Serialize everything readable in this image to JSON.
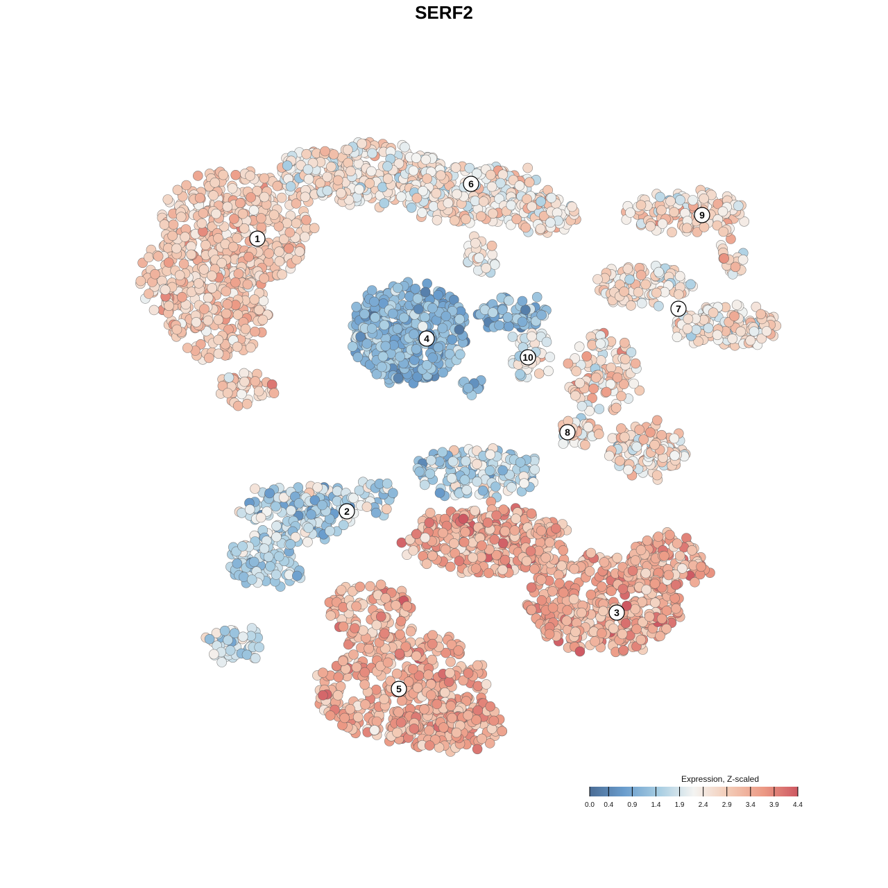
{
  "chart_data": {
    "type": "scatter",
    "title": "SERF2",
    "xlabel": "",
    "ylabel": "",
    "grid": false,
    "legend": {
      "title": "Expression, Z-scaled",
      "placement": "bottom-right",
      "range": [
        0.0,
        4.4
      ],
      "ticks": [
        0.0,
        0.4,
        0.9,
        1.4,
        1.9,
        2.4,
        2.9,
        3.4,
        3.9,
        4.4
      ],
      "tick_labels": [
        "0.0",
        "0.4",
        "0.9",
        "1.4",
        "1.9",
        "2.4",
        "2.9",
        "3.4",
        "3.9",
        "4.4"
      ],
      "colors": [
        "#4b6d96",
        "#6a9dcd",
        "#a7cde2",
        "#f4f4f2",
        "#f3cbb6",
        "#ec9a85",
        "#cd5862"
      ]
    },
    "clusters": [
      {
        "label": "1",
        "mean_expression": 2.95,
        "spread": 0.35
      },
      {
        "label": "2",
        "mean_expression": 1.6,
        "spread": 0.5
      },
      {
        "label": "3",
        "mean_expression": 3.45,
        "spread": 0.4
      },
      {
        "label": "4",
        "mean_expression": 1.1,
        "spread": 0.35
      },
      {
        "label": "5",
        "mean_expression": 3.35,
        "spread": 0.4
      },
      {
        "label": "6",
        "mean_expression": 2.45,
        "spread": 0.45
      },
      {
        "label": "7",
        "mean_expression": 2.5,
        "spread": 0.45
      },
      {
        "label": "8",
        "mean_expression": 2.7,
        "spread": 0.55
      },
      {
        "label": "9",
        "mean_expression": 2.6,
        "spread": 0.5
      },
      {
        "label": "10",
        "mean_expression": 2.1,
        "spread": 0.45
      }
    ]
  }
}
